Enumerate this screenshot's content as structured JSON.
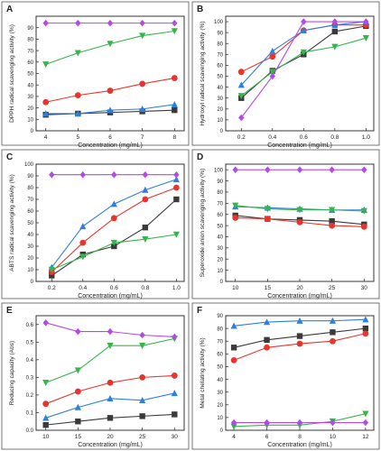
{
  "colors": {
    "black": "#3a3a3a",
    "red": "#e8342c",
    "blue": "#2f7fdc",
    "green": "#35b54a",
    "purple": "#b44ae6"
  },
  "chart_data": [
    {
      "type": "line",
      "panel_label": "A",
      "xlabel": "Concentration (mg/mL)",
      "ylabel": "DPPH radical scavenging activity (%)",
      "x": [
        4,
        5,
        6,
        7,
        8
      ],
      "xlim": [
        3.7,
        8.3
      ],
      "ylim": [
        0,
        100
      ],
      "xticks": [
        4,
        5,
        6,
        7,
        8
      ],
      "yticks": [
        0,
        10,
        20,
        30,
        40,
        50,
        60,
        70,
        80,
        90
      ],
      "series": [
        {
          "color": "black",
          "marker": "square",
          "values": [
            14,
            15,
            16,
            17,
            18
          ]
        },
        {
          "color": "blue",
          "marker": "triangle-up",
          "values": [
            15,
            15,
            18,
            19,
            23
          ]
        },
        {
          "color": "red",
          "marker": "circle",
          "values": [
            25,
            31,
            35,
            41,
            46
          ]
        },
        {
          "color": "green",
          "marker": "triangle-down",
          "values": [
            58,
            68,
            76,
            83,
            87
          ]
        },
        {
          "color": "purple",
          "marker": "diamond",
          "values": [
            94,
            94,
            94,
            94,
            94
          ]
        }
      ]
    },
    {
      "type": "line",
      "panel_label": "B",
      "xlabel": "Concentration (mg/mL)",
      "ylabel": "Hydroxyl radical scavenging activity (%)",
      "x": [
        0.2,
        0.4,
        0.6,
        0.8,
        1.0
      ],
      "xlim": [
        0.1,
        1.05
      ],
      "ylim": [
        0,
        105
      ],
      "xticks": [
        0.2,
        0.4,
        0.6,
        0.8,
        1.0
      ],
      "yticks": [
        0,
        10,
        20,
        30,
        40,
        50,
        60,
        70,
        80,
        90,
        100
      ],
      "series": [
        {
          "color": "black",
          "marker": "square",
          "values": [
            30,
            55,
            70,
            91,
            96
          ]
        },
        {
          "color": "red",
          "marker": "circle",
          "values": [
            54,
            68,
            92,
            97,
            97
          ]
        },
        {
          "color": "blue",
          "marker": "triangle-up",
          "values": [
            42,
            73,
            92,
            97,
            100
          ]
        },
        {
          "color": "green",
          "marker": "triangle-down",
          "values": [
            32,
            54,
            72,
            77,
            85
          ]
        },
        {
          "color": "purple",
          "marker": "diamond",
          "values": [
            12,
            50,
            100,
            100,
            100
          ]
        }
      ]
    },
    {
      "type": "line",
      "panel_label": "C",
      "xlabel": "Concentration (mg/mL)",
      "ylabel": "ABTS radical scavenging activity (%)",
      "x": [
        0.2,
        0.4,
        0.6,
        0.8,
        1.0
      ],
      "xlim": [
        0.1,
        1.05
      ],
      "ylim": [
        0,
        100
      ],
      "xticks": [
        0.2,
        0.4,
        0.6,
        0.8,
        1.0
      ],
      "yticks": [
        0,
        10,
        20,
        30,
        40,
        50,
        60,
        70,
        80,
        90,
        100
      ],
      "series": [
        {
          "color": "black",
          "marker": "square",
          "values": [
            5,
            23,
            30,
            46,
            70
          ]
        },
        {
          "color": "red",
          "marker": "circle",
          "values": [
            8,
            33,
            54,
            70,
            80
          ]
        },
        {
          "color": "blue",
          "marker": "triangle-up",
          "values": [
            12,
            47,
            66,
            78,
            87
          ]
        },
        {
          "color": "green",
          "marker": "triangle-down",
          "values": [
            10,
            21,
            33,
            36,
            40
          ]
        },
        {
          "color": "purple",
          "marker": "diamond",
          "values": [
            91,
            91,
            91,
            91,
            91
          ]
        }
      ]
    },
    {
      "type": "line",
      "panel_label": "D",
      "xlabel": "Concentration (mg/mL)",
      "ylabel": "Superoxide anion scavenging activity (%)",
      "x": [
        10,
        15,
        20,
        25,
        30
      ],
      "xlim": [
        8.5,
        31.5
      ],
      "ylim": [
        0,
        105
      ],
      "xticks": [
        10,
        15,
        20,
        25,
        30
      ],
      "yticks": [
        0,
        10,
        20,
        30,
        40,
        50,
        60,
        70,
        80,
        90,
        100
      ],
      "series": [
        {
          "color": "black",
          "marker": "square",
          "values": [
            59,
            56,
            55,
            54,
            51
          ]
        },
        {
          "color": "red",
          "marker": "circle",
          "values": [
            57,
            56,
            53,
            50,
            49
          ]
        },
        {
          "color": "blue",
          "marker": "triangle-up",
          "values": [
            67,
            66,
            65,
            64,
            64
          ]
        },
        {
          "color": "green",
          "marker": "triangle-down",
          "values": [
            68,
            65,
            64,
            64,
            63
          ]
        },
        {
          "color": "purple",
          "marker": "diamond",
          "values": [
            100,
            100,
            100,
            100,
            100
          ]
        }
      ]
    },
    {
      "type": "line",
      "panel_label": "E",
      "xlabel": "Concentration  (mg/mL)",
      "ylabel": "Reducing capacity (Abs)",
      "x": [
        10,
        15,
        20,
        25,
        30
      ],
      "xlim": [
        8.5,
        31.5
      ],
      "ylim": [
        0,
        0.65
      ],
      "xticks": [
        10,
        15,
        20,
        25,
        30
      ],
      "yticks": [
        0.0,
        0.1,
        0.2,
        0.3,
        0.4,
        0.5,
        0.6
      ],
      "series": [
        {
          "color": "black",
          "marker": "square",
          "values": [
            0.03,
            0.05,
            0.07,
            0.08,
            0.09
          ]
        },
        {
          "color": "blue",
          "marker": "triangle-up",
          "values": [
            0.07,
            0.13,
            0.18,
            0.17,
            0.21
          ]
        },
        {
          "color": "red",
          "marker": "circle",
          "values": [
            0.15,
            0.22,
            0.27,
            0.3,
            0.31
          ]
        },
        {
          "color": "green",
          "marker": "triangle-down",
          "values": [
            0.27,
            0.34,
            0.48,
            0.48,
            0.52
          ]
        },
        {
          "color": "purple",
          "marker": "diamond",
          "values": [
            0.61,
            0.56,
            0.56,
            0.54,
            0.53
          ]
        }
      ]
    },
    {
      "type": "line",
      "panel_label": "F",
      "xlabel": "Concentration (mg/mL)",
      "ylabel": "Metal chelating activity (%)",
      "x": [
        4,
        6,
        8,
        10,
        12
      ],
      "xlim": [
        3.5,
        12.5
      ],
      "ylim": [
        0,
        90
      ],
      "xticks": [
        4,
        6,
        8,
        10,
        12
      ],
      "yticks": [
        0,
        10,
        20,
        30,
        40,
        50,
        60,
        70,
        80,
        90
      ],
      "series": [
        {
          "color": "blue",
          "marker": "triangle-up",
          "values": [
            82,
            85,
            86,
            86,
            87
          ]
        },
        {
          "color": "black",
          "marker": "square",
          "values": [
            65,
            71,
            74,
            77,
            80
          ]
        },
        {
          "color": "red",
          "marker": "circle",
          "values": [
            55,
            65,
            68,
            70,
            76
          ]
        },
        {
          "color": "green",
          "marker": "triangle-down",
          "values": [
            3,
            4,
            4,
            7,
            13
          ]
        },
        {
          "color": "purple",
          "marker": "diamond",
          "values": [
            6,
            6,
            6,
            6,
            6
          ]
        }
      ]
    }
  ]
}
